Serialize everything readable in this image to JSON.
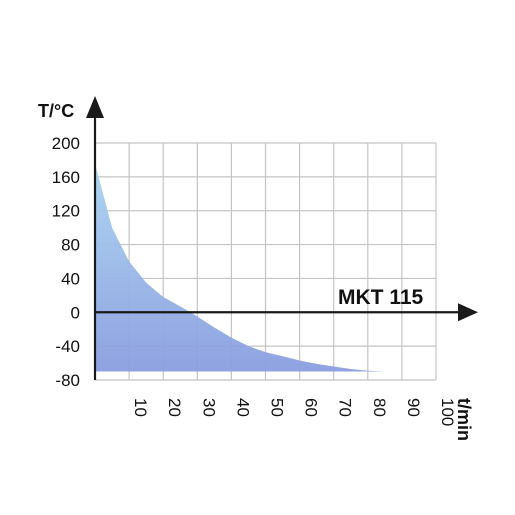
{
  "chart_data": {
    "type": "area",
    "title": "MKT 115",
    "xlabel": "t/min",
    "ylabel": "T/°C",
    "xlim": [
      0,
      100
    ],
    "ylim": [
      -80,
      200
    ],
    "x_ticks": [
      10,
      20,
      30,
      40,
      50,
      60,
      70,
      80,
      90,
      100
    ],
    "y_ticks": [
      200,
      160,
      120,
      80,
      40,
      0,
      -40,
      -80
    ],
    "grid": true,
    "series": [
      {
        "x": [
          0,
          5,
          10,
          15,
          20,
          25,
          30,
          35,
          40,
          45,
          50,
          55,
          60,
          65,
          70,
          75,
          80,
          85,
          90
        ],
        "y": [
          176,
          100,
          60,
          35,
          18,
          7,
          -5,
          -18,
          -30,
          -40,
          -47,
          -52,
          -57,
          -61,
          -64,
          -67,
          -69,
          -70,
          -70
        ],
        "baseline": -70
      }
    ],
    "colors": {
      "fill_top": "#a9d4ef",
      "fill_bottom": "#8a9de0",
      "grid": "#c4c4c4",
      "axis": "#1a1a1a"
    }
  }
}
